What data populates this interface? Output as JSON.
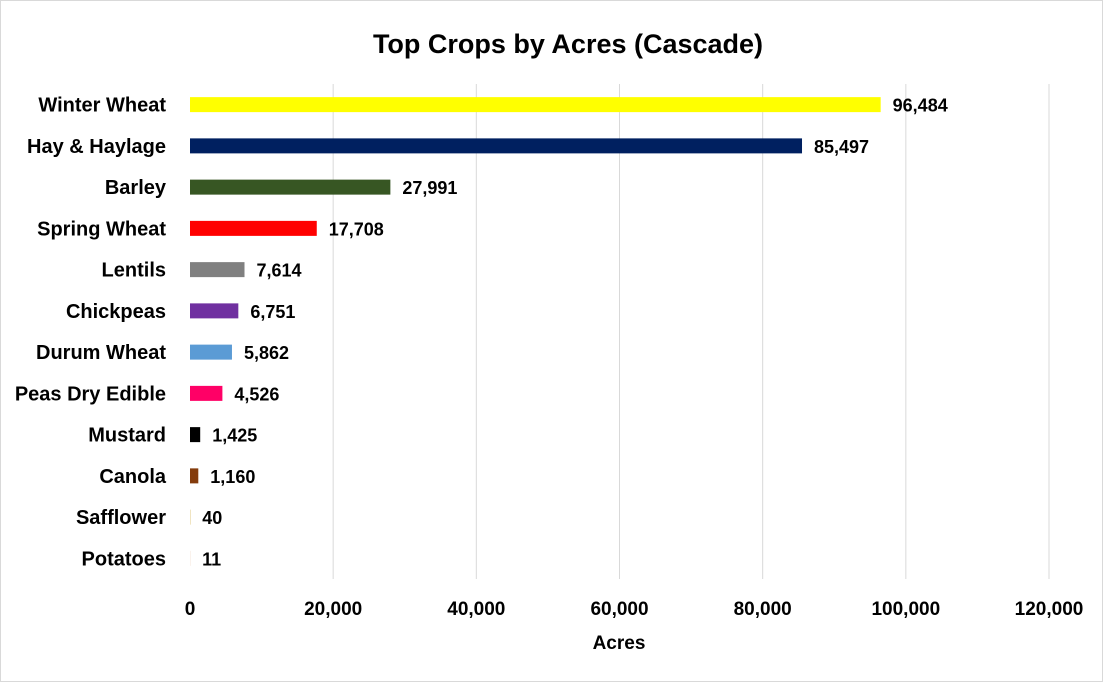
{
  "chart_data": {
    "type": "bar",
    "orientation": "horizontal",
    "title": "Top Crops by Acres (Cascade)",
    "xlabel": "Acres",
    "ylabel": "",
    "xlim": [
      0,
      120000
    ],
    "x_ticks": [
      0,
      20000,
      40000,
      60000,
      80000,
      100000,
      120000
    ],
    "x_tick_labels": [
      "0",
      "20,000",
      "40,000",
      "60,000",
      "80,000",
      "100,000",
      "120,000"
    ],
    "grid": "vertical major gridlines",
    "legend": "none",
    "categories": [
      "Winter Wheat",
      "Hay & Haylage",
      "Barley",
      "Spring Wheat",
      "Lentils",
      "Chickpeas",
      "Durum Wheat",
      "Peas Dry Edible",
      "Mustard",
      "Canola",
      "Safflower",
      "Potatoes"
    ],
    "values": [
      96484,
      85497,
      27991,
      17708,
      7614,
      6751,
      5862,
      4526,
      1425,
      1160,
      40,
      11
    ],
    "value_labels": [
      "96,484",
      "85,497",
      "27,991",
      "17,708",
      "7,614",
      "6,751",
      "5,862",
      "4,526",
      "1,425",
      "1,160",
      "40",
      "11"
    ],
    "colors": [
      "#ffff00",
      "#002060",
      "#375623",
      "#ff0000",
      "#808080",
      "#7030a0",
      "#5b9bd5",
      "#ff0066",
      "#000000",
      "#843c0c",
      "#c9a227",
      "#c55a11"
    ]
  }
}
